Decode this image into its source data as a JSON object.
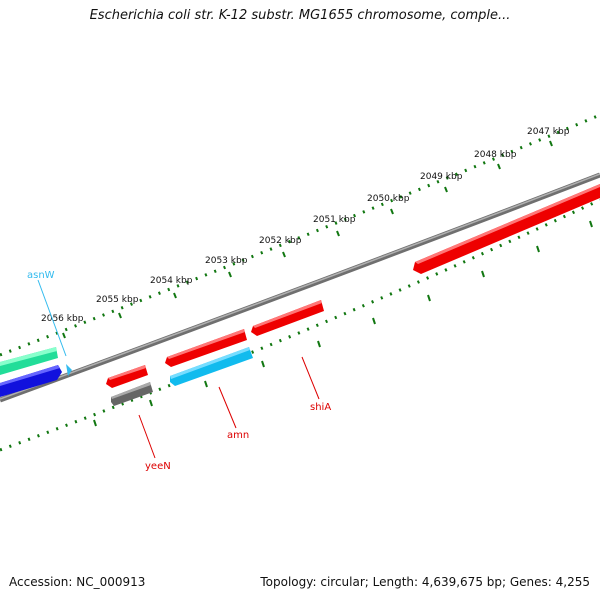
{
  "title": "Escherichia coli str. K-12 substr. MG1655 chromosome, comple...",
  "footer": {
    "accession": "Accession: NC_000913",
    "summary": "Topology: circular; Length: 4,639,675 bp; Genes: 4,255"
  },
  "ticks": [
    "2047 kbp",
    "2048 kbp",
    "2049 kbp",
    "2050 kbp",
    "2051 kbp",
    "2052 kbp",
    "2053 kbp",
    "2054 kbp",
    "2055 kbp",
    "2056 kbp"
  ],
  "genes": [
    {
      "label": "asnW",
      "color": "#33bbee"
    },
    {
      "label": "yeeN",
      "color": "#dd0000"
    },
    {
      "label": "amn",
      "color": "#dd0000"
    },
    {
      "label": "shiA",
      "color": "#dd0000"
    }
  ],
  "colors": {
    "tick": "#117711",
    "backbone": "#808080",
    "forward_gene": "#ee0000",
    "rna_green": "#22dd99",
    "rna_blue": "#1111dd",
    "cyan_gene": "#11bbee",
    "pseudo_gray": "#666666"
  }
}
